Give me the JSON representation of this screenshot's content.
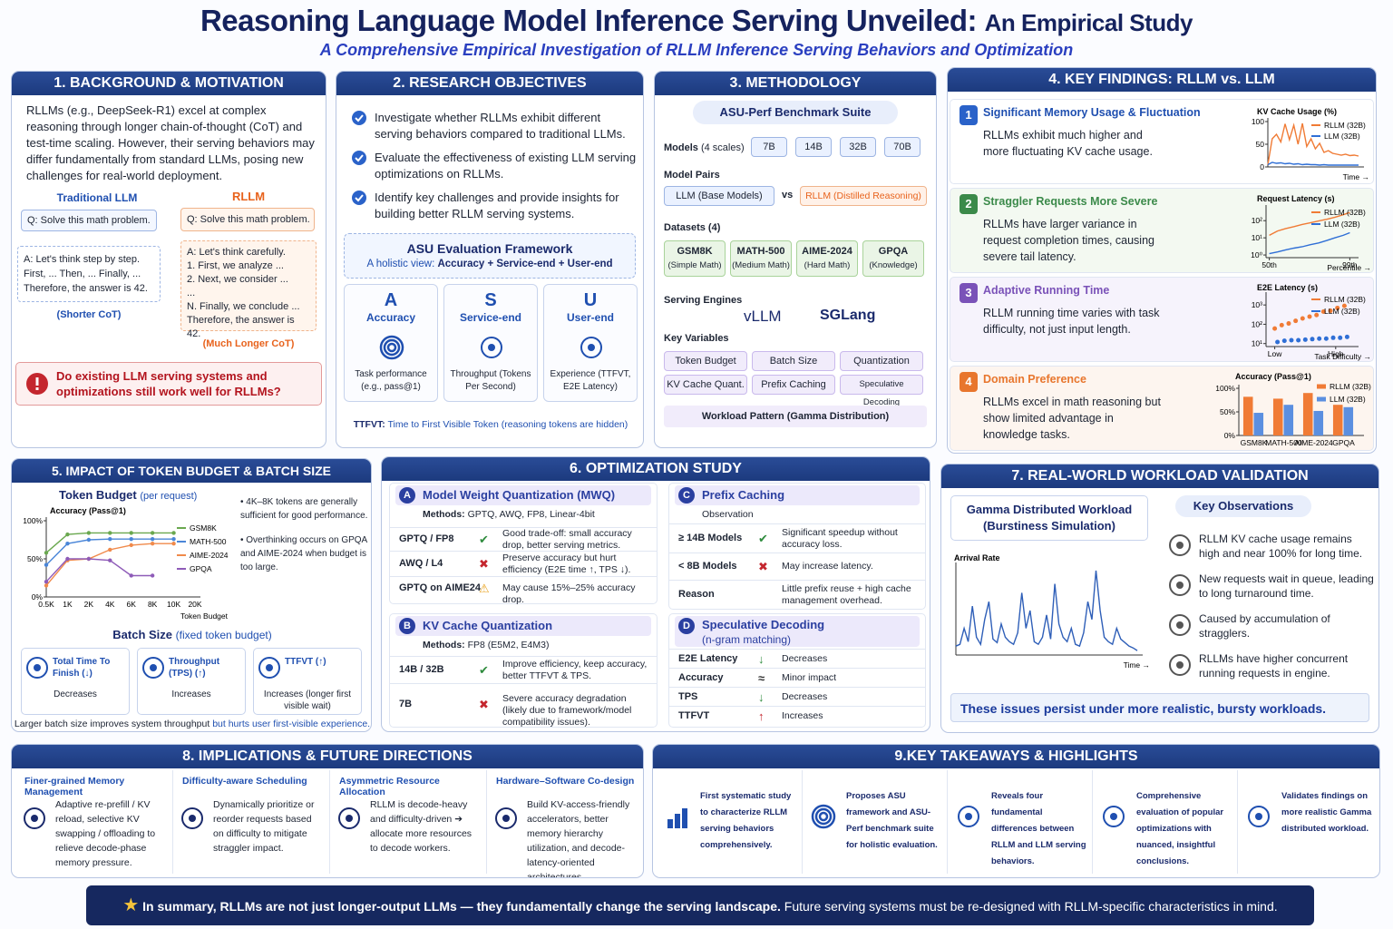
{
  "header": {
    "title": "Reasoning Language Model Inference Serving Unveiled:",
    "title_suffix": "An Empirical Study",
    "subtitle": "A Comprehensive Empirical Investigation of RLLM Inference Serving Behaviors and Optimization"
  },
  "s1": {
    "heading": "1. BACKGROUND & MOTIVATION",
    "intro": "RLLMs (e.g., DeepSeek-R1) excel at complex reasoning through longer chain-of-thought (CoT) and test-time scaling. However, their serving behaviors may differ fundamentally from standard LLMs, posing new challenges for real-world deployment.",
    "llm_label": "Traditional LLM",
    "llm_q": "Q: Solve this math problem.",
    "llm_a": [
      "A: Let's think step by step.",
      "First, ... Then, ... Finally, ...",
      "Therefore, the answer is 42."
    ],
    "llm_note": "(Shorter CoT)",
    "rllm_label": "RLLM",
    "rllm_q": "Q: Solve this math problem.",
    "rllm_a": [
      "A: Let's think carefully.",
      "1. First, we analyze ...",
      "2. Next, we consider ...",
      "...",
      "N. Finally, we conclude ...",
      "Therefore, the answer is 42."
    ],
    "rllm_note": "(Much Longer CoT)",
    "question": "Do existing LLM serving systems and optimizations still work well for RLLMs?"
  },
  "s2": {
    "heading": "2. RESEARCH OBJECTIVES",
    "objectives": [
      "Investigate whether RLLMs exhibit different serving behaviors compared to traditional LLMs.",
      "Evaluate the effectiveness of existing LLM serving optimizations on RLLMs.",
      "Identify key challenges and provide insights for building better RLLM serving systems."
    ],
    "framework_title": "ASU Evaluation Framework",
    "framework_sub": "A holistic view:",
    "framework_sub_em": "Accuracy + Service-end + User-end",
    "pillars": [
      {
        "letter": "A",
        "name": "Accuracy",
        "desc": "Task performance (e.g., pass@1)"
      },
      {
        "letter": "S",
        "name": "Service-end",
        "desc": "Throughput (Tokens Per Second)"
      },
      {
        "letter": "U",
        "name": "User-end",
        "desc": "Experience (TTFVT, E2E Latency)"
      }
    ],
    "note_label": "TTFVT:",
    "note": "Time to First Visible Token (reasoning tokens are hidden)"
  },
  "s3": {
    "heading": "3. METHODOLOGY",
    "suite": "ASU-Perf Benchmark Suite",
    "models_label": "Models",
    "models_note": "(4 scales)",
    "models": [
      "7B",
      "14B",
      "32B",
      "70B"
    ],
    "pairs_label": "Model Pairs",
    "pair_llm": "LLM",
    "pair_llm_note": "(Base Models)",
    "vs": "vs",
    "pair_rllm": "RLLM",
    "pair_rllm_note": "(Distilled Reasoning)",
    "datasets_label": "Datasets (4)",
    "datasets": [
      {
        "name": "GSM8K",
        "note": "(Simple Math)"
      },
      {
        "name": "MATH-500",
        "note": "(Medium Math)"
      },
      {
        "name": "AIME-2024",
        "note": "(Hard Math)"
      },
      {
        "name": "GPQA",
        "note": "(Knowledge)"
      }
    ],
    "engines_label": "Serving Engines",
    "engines": [
      "vLLM",
      "SGLang"
    ],
    "vars_label": "Key Variables",
    "vars": [
      "Token Budget",
      "Batch Size",
      "Quantization",
      "KV Cache Quant.",
      "Prefix Caching",
      "Speculative Decoding"
    ],
    "workload": "Workload Pattern (Gamma Distribution)"
  },
  "s4": {
    "heading": "4. KEY FINDINGS: RLLM vs. LLM",
    "findings": [
      {
        "num": "1",
        "title": "Significant Memory Usage & Fluctuation",
        "text": "RLLMs exhibit much higher and more fluctuating KV cache usage."
      },
      {
        "num": "2",
        "title": "Straggler Requests More Severe",
        "text": "RLLMs have larger variance in request completion times, causing severe tail latency."
      },
      {
        "num": "3",
        "title": "Adaptive Running Time",
        "text": "RLLM running time varies with task difficulty, not just input length."
      },
      {
        "num": "4",
        "title": "Domain Preference",
        "text": "RLLMs excel in math reasoning but show limited advantage in knowledge tasks."
      }
    ]
  },
  "s5": {
    "heading": "5. IMPACT OF TOKEN BUDGET & BATCH SIZE",
    "tb_title": "Token Budget",
    "tb_note": "(per request)",
    "notes": [
      "4K–8K tokens are generally sufficient for good performance.",
      "Overthinking occurs on GPQA and AIME-2024 when budget is too large."
    ],
    "bs_title": "Batch Size",
    "bs_note": "(fixed token budget)",
    "cards": [
      {
        "label": "Total Time To Finish (↓)",
        "effect": "Decreases"
      },
      {
        "label": "Throughput (TPS) (↑)",
        "effect": "Increases"
      },
      {
        "label": "TTFVT (↑)",
        "effect": "Increases (longer first visible wait)"
      }
    ],
    "footer": "Larger batch size improves system throughput",
    "footer_em": "but hurts user first-visible experience."
  },
  "s6": {
    "heading": "6. OPTIMIZATION STUDY",
    "a": {
      "letter": "A",
      "title": "Model Weight Quantization (MWQ)",
      "methods_label": "Methods:",
      "methods": "GPTQ, AWQ, FP8, Linear-4bit",
      "rows": [
        {
          "name": "GPTQ / FP8",
          "mark": "✔",
          "text": "Good trade-off: small accuracy drop, better serving metrics."
        },
        {
          "name": "AWQ / L4",
          "mark": "✖",
          "text": "Preserve accuracy but hurt efficiency (E2E time ↑, TPS ↓)."
        },
        {
          "name": "GPTQ on AIME24",
          "mark": "⚠",
          "text": "May cause 15%–25% accuracy drop."
        }
      ]
    },
    "b": {
      "letter": "B",
      "title": "KV Cache Quantization",
      "methods_label": "Methods:",
      "methods": "FP8 (E5M2, E4M3)",
      "rows": [
        {
          "name": "14B / 32B",
          "mark": "✔",
          "text": "Improve efficiency, keep accuracy, better TTFVT & TPS."
        },
        {
          "name": "7B",
          "mark": "✖",
          "text": "Severe accuracy degradation (likely due to framework/model compatibility issues)."
        }
      ]
    },
    "c": {
      "letter": "C",
      "title": "Prefix Caching",
      "col": "Observation",
      "rows": [
        {
          "name": "≥ 14B Models",
          "mark": "✔",
          "text": "Significant speedup without accuracy loss."
        },
        {
          "name": "< 8B Models",
          "mark": "✖",
          "text": "May increase latency."
        },
        {
          "name": "Reason",
          "text": "Little prefix reuse + high cache management overhead."
        }
      ]
    },
    "d": {
      "letter": "D",
      "title": "Speculative Decoding",
      "sub": "(n-gram matching)",
      "rows": [
        {
          "name": "E2E Latency",
          "mark": "↓",
          "text": "Decreases"
        },
        {
          "name": "Accuracy",
          "mark": "≈",
          "text": "Minor impact"
        },
        {
          "name": "TPS",
          "mark": "↓",
          "text": "Decreases"
        },
        {
          "name": "TTFVT",
          "mark": "↑",
          "text": "Increases"
        }
      ]
    }
  },
  "s7": {
    "heading": "7. REAL-WORLD WORKLOAD VALIDATION",
    "workload_title": "Gamma Distributed Workload",
    "workload_sub": "(Burstiness Simulation)",
    "obs_title": "Key Observations",
    "observations": [
      "RLLM KV cache usage remains high and near 100% for long time.",
      "New requests wait in queue, leading to long turnaround time.",
      "Caused by accumulation of stragglers.",
      "RLLMs have higher concurrent running requests in engine."
    ],
    "banner": "These issues persist under more realistic, bursty workloads."
  },
  "s8": {
    "heading": "8. IMPLICATIONS & FUTURE DIRECTIONS",
    "items": [
      {
        "title": "Finer-grained Memory Management",
        "text": "Adaptive re-prefill / KV reload, selective KV swapping / offloading to relieve decode-phase memory pressure."
      },
      {
        "title": "Difficulty-aware Scheduling",
        "text": "Dynamically prioritize or reorder requests based on difficulty to mitigate straggler impact."
      },
      {
        "title": "Asymmetric Resource Allocation",
        "text": "RLLM is decode-heavy and difficulty-driven ➔ allocate more resources to decode workers."
      },
      {
        "title": "Hardware–Software Co-design",
        "text": "Build KV-access-friendly accelerators, better memory hierarchy utilization, and decode-latency-oriented architectures."
      }
    ]
  },
  "s9": {
    "heading": "9.KEY TAKEAWAYS & HIGHLIGHTS",
    "items": [
      "First systematic study to characterize RLLM serving behaviors comprehensively.",
      "Proposes ASU framework and ASU-Perf benchmark suite for holistic evaluation.",
      "Reveals four fundamental differences between RLLM and LLM serving behaviors.",
      "Comprehensive evaluation of popular optimizations with nuanced, insightful conclusions.",
      "Validates findings on more realistic Gamma distributed workload."
    ]
  },
  "footer": {
    "bold": "In summary, RLLMs are not just longer-output LLMs — they fundamentally change the serving landscape.",
    "rest": "Future serving systems must be re-designed with RLLM-specific characteristics in mind."
  },
  "chart_data": [
    {
      "type": "line",
      "title": "KV Cache Usage (%)",
      "x_label": "Time →",
      "ylim": [
        0,
        100
      ],
      "yticks": [
        0,
        50,
        100
      ],
      "series": [
        {
          "name": "RLLM (32B)",
          "color": "#f07b35",
          "values": [
            5,
            62,
            72,
            55,
            95,
            60,
            92,
            50,
            96,
            45,
            62,
            40,
            52,
            32,
            36,
            30,
            28,
            26,
            28,
            25,
            26,
            24
          ]
        },
        {
          "name": "LLM (32B)",
          "color": "#2f6fd6",
          "values": [
            5,
            10,
            8,
            9,
            7,
            8,
            6,
            7,
            5,
            6,
            5,
            5,
            4,
            5,
            4,
            4,
            4,
            4,
            4,
            4,
            4,
            4
          ]
        }
      ]
    },
    {
      "type": "line",
      "title": "Request Latency (s)",
      "x_label": "Percentile →",
      "log_y": true,
      "ylim": [
        0.7,
        500
      ],
      "yticks": [
        {
          "value": 1,
          "label": "10⁰"
        },
        {
          "value": 10,
          "label": "10¹"
        },
        {
          "value": 100,
          "label": "10²"
        }
      ],
      "x": [
        50,
        55,
        60,
        65,
        70,
        75,
        80,
        85,
        90,
        95,
        99
      ],
      "xlim": [
        48,
        101
      ],
      "xticks": [
        {
          "value": 50,
          "label": "50th"
        },
        {
          "value": 99,
          "label": "99th"
        }
      ],
      "series": [
        {
          "name": "RLLM (32B)",
          "color": "#f07b35",
          "values": [
            14,
            25,
            35,
            45,
            60,
            75,
            95,
            120,
            160,
            220,
            300
          ]
        },
        {
          "name": "LLM (32B)",
          "color": "#2f6fd6",
          "values": [
            1.2,
            1.5,
            2,
            2.5,
            3,
            4,
            5,
            7,
            10,
            14,
            20
          ]
        }
      ]
    },
    {
      "type": "scatter",
      "title": "E2E Latency (s)",
      "x_label": "Task Difficulty →",
      "log_y": true,
      "ylim": [
        7,
        3000
      ],
      "yticks": [
        {
          "value": 10,
          "label": "10¹"
        },
        {
          "value": 100,
          "label": "10²"
        },
        {
          "value": 1000,
          "label": "10³"
        }
      ],
      "x": [
        0.1,
        0.18,
        0.26,
        0.34,
        0.42,
        0.5,
        0.58,
        0.66,
        0.74,
        0.82,
        0.9
      ],
      "xlim": [
        0,
        1
      ],
      "xticks": [
        {
          "value": 0.1,
          "label": "Low"
        },
        {
          "value": 0.8,
          "label": "High"
        }
      ],
      "series": [
        {
          "name": "RLLM (32B)",
          "color": "#f07b35",
          "values": [
            60,
            90,
            110,
            150,
            200,
            250,
            300,
            450,
            500,
            700,
            900
          ]
        },
        {
          "name": "LLM (32B)",
          "color": "#2f6fd6",
          "values": [
            12,
            14,
            15,
            15,
            16,
            17,
            18,
            18,
            20,
            20,
            22
          ]
        }
      ]
    },
    {
      "type": "bar",
      "title": "Accuracy (Pass@1)",
      "ylim": [
        0,
        100
      ],
      "yticks": [
        {
          "value": 0,
          "label": "0%"
        },
        {
          "value": 50,
          "label": "50%"
        },
        {
          "value": 100,
          "label": "100%"
        }
      ],
      "categories": [
        "GSM8K",
        "MATH-500",
        "AIME-2024",
        "GPQA"
      ],
      "series": [
        {
          "name": "RLLM (32B)",
          "color": "#f07b35",
          "values": [
            82,
            78,
            90,
            65
          ]
        },
        {
          "name": "LLM (32B)",
          "color": "#5b8fe0",
          "values": [
            48,
            65,
            52,
            60
          ]
        }
      ]
    },
    {
      "type": "line",
      "title": "Accuracy (Pass@1)",
      "x_label": "Token Budget",
      "ylim": [
        0,
        100
      ],
      "yticks": [
        {
          "value": 0,
          "label": "0%"
        },
        {
          "value": 50,
          "label": "50%"
        },
        {
          "value": 100,
          "label": "100%"
        }
      ],
      "categories": [
        "0.5K",
        "1K",
        "2K",
        "4K",
        "6K",
        "8K",
        "10K",
        "20K"
      ],
      "series": [
        {
          "name": "GSM8K",
          "color": "#6aa84f",
          "values": [
            58,
            82,
            84,
            84,
            84,
            84,
            84,
            null
          ]
        },
        {
          "name": "MATH-500",
          "color": "#4a86d8",
          "values": [
            42,
            70,
            75,
            76,
            76,
            76,
            76,
            null
          ]
        },
        {
          "name": "AIME-2024",
          "color": "#f08a4b",
          "values": [
            15,
            48,
            50,
            62,
            68,
            70,
            70,
            null
          ]
        },
        {
          "name": "GPQA",
          "color": "#8e5bb8",
          "values": [
            20,
            50,
            50,
            48,
            28,
            28,
            null,
            null
          ]
        }
      ]
    },
    {
      "type": "line",
      "y_label": "Arrival Rate",
      "x_label": "Time →",
      "ylim": [
        0,
        100
      ],
      "series": [
        {
          "name": null,
          "color": "#2f5fb8",
          "values": [
            10,
            12,
            30,
            15,
            55,
            20,
            12,
            40,
            60,
            18,
            14,
            35,
            20,
            15,
            12,
            25,
            70,
            30,
            50,
            15,
            12,
            20,
            45,
            18,
            80,
            35,
            20,
            15,
            30,
            12,
            10,
            25,
            60,
            40,
            95,
            50,
            20,
            15,
            12,
            30,
            18,
            14,
            10,
            8,
            5
          ]
        }
      ]
    }
  ]
}
